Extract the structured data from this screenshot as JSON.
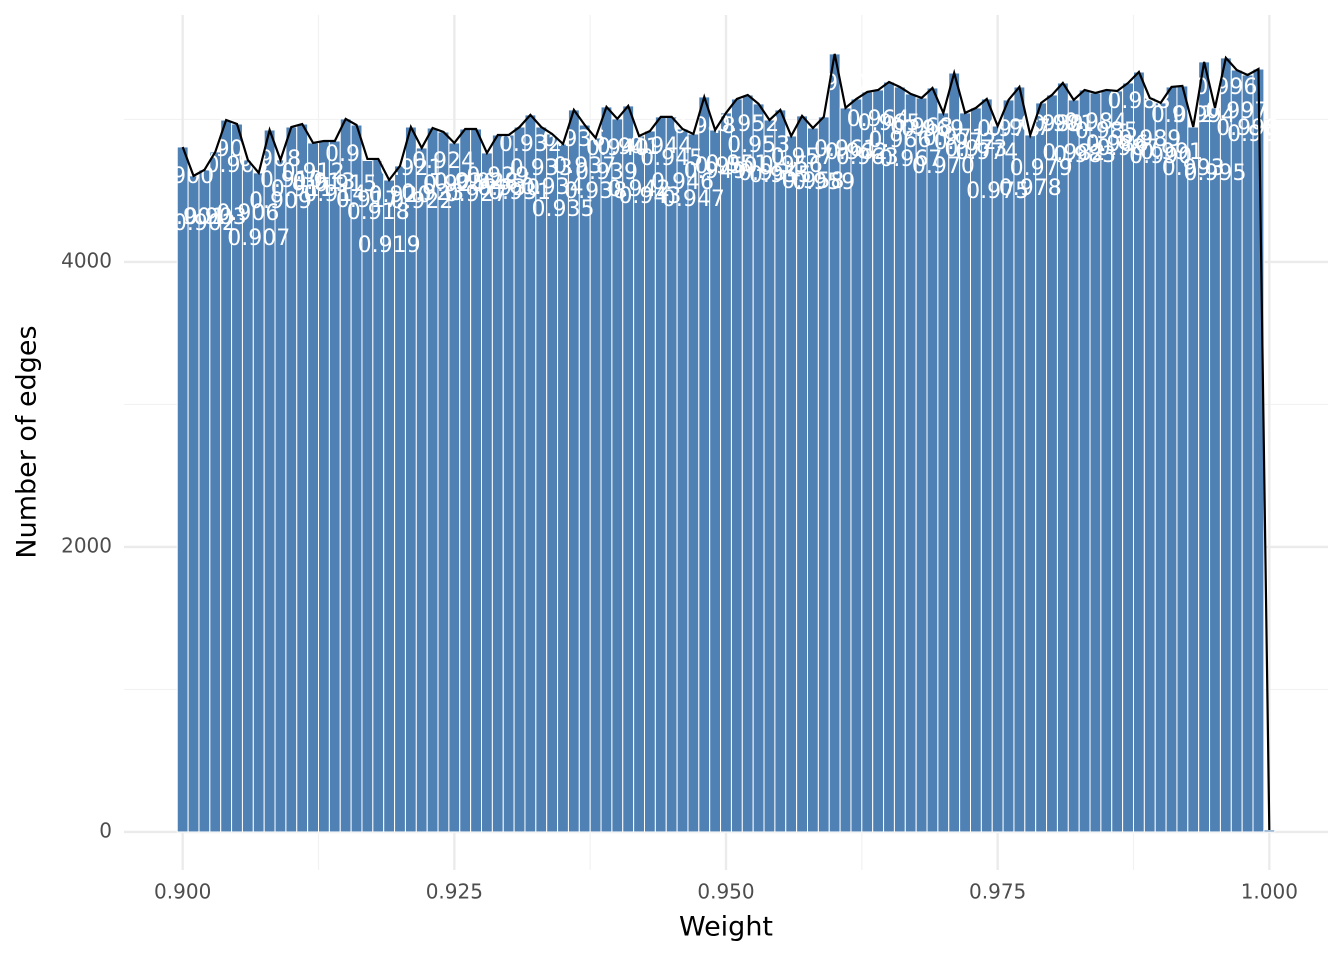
{
  "chart_data": {
    "type": "histogram",
    "x_label": "Weight",
    "y_label": "Number of edges",
    "bins": [
      0.8995,
      0.9005,
      0.9015,
      0.9025,
      0.9035,
      0.9045,
      0.9055,
      0.9065,
      0.9075,
      0.9085,
      0.9095,
      0.9105,
      0.9115,
      0.9125,
      0.9135,
      0.9145,
      0.9155,
      0.9165,
      0.9175,
      0.9185,
      0.9195,
      0.9205,
      0.9215,
      0.9225,
      0.9235,
      0.9245,
      0.9255,
      0.9265,
      0.9275,
      0.9285,
      0.9295,
      0.9305,
      0.9315,
      0.9325,
      0.9335,
      0.9345,
      0.9355,
      0.9365,
      0.9375,
      0.9385,
      0.9395,
      0.9405,
      0.9415,
      0.9425,
      0.9435,
      0.9445,
      0.9455,
      0.9465,
      0.9475,
      0.9485,
      0.9495,
      0.9505,
      0.9515,
      0.9525,
      0.9535,
      0.9545,
      0.9555,
      0.9565,
      0.9575,
      0.9585,
      0.9595,
      0.9605,
      0.9615,
      0.9625,
      0.9635,
      0.9645,
      0.9655,
      0.9665,
      0.9675,
      0.9685,
      0.9695,
      0.9705,
      0.9715,
      0.9725,
      0.9735,
      0.9745,
      0.9755,
      0.9765,
      0.9775,
      0.9785,
      0.9795,
      0.9805,
      0.9815,
      0.9825,
      0.9835,
      0.9845,
      0.9855,
      0.9865,
      0.9875,
      0.9885,
      0.9895,
      0.9905,
      0.9915,
      0.9925,
      0.9935,
      0.9945,
      0.9955,
      0.9965,
      0.9975,
      0.9985,
      0.9995,
      1.0005
    ],
    "values": [
      4807,
      4604,
      4646,
      4772,
      4996,
      4968,
      4716,
      4625,
      4926,
      4716,
      4947,
      4968,
      4835,
      4849,
      4849,
      5004,
      4961,
      4723,
      4723,
      4575,
      4674,
      4947,
      4800,
      4940,
      4912,
      4835,
      4933,
      4933,
      4765,
      4891,
      4891,
      4947,
      5032,
      4947,
      4898,
      4828,
      5067,
      4961,
      4870,
      5088,
      5004,
      5095,
      4884,
      4919,
      5018,
      5018,
      4933,
      4898,
      5158,
      4926,
      5046,
      5144,
      5172,
      5109,
      4996,
      5067,
      4884,
      5025,
      4940,
      5018,
      5460,
      5081,
      5144,
      5193,
      5207,
      5263,
      5228,
      5179,
      5151,
      5221,
      5046,
      5326,
      5046,
      5081,
      5144,
      4954,
      5137,
      5228,
      4891,
      5116,
      5172,
      5256,
      5137,
      5207,
      5186,
      5207,
      5200,
      5256,
      5333,
      5151,
      5116,
      5228,
      5235,
      4947,
      5404,
      5081,
      5432,
      5347,
      5312,
      5354,
      14
    ],
    "labels": [
      "0.900",
      "0.901",
      "0.902",
      "0.903",
      "0.904",
      "0.905",
      "0.906",
      "0.907",
      "0.908",
      "0.909",
      "0.910",
      "0.911",
      "0.912",
      "0.913",
      "0.914",
      "0.915",
      "0.916",
      "0.917",
      "0.918",
      "0.919",
      "0.920",
      "0.921",
      "0.922",
      "0.923",
      "0.924",
      "0.925",
      "0.926",
      "0.927",
      "0.928",
      "0.929",
      "0.930",
      "0.931",
      "0.932",
      "0.933",
      "0.934",
      "0.935",
      "0.936",
      "0.937",
      "0.938",
      "0.939",
      "0.940",
      "0.941",
      "0.942",
      "0.943",
      "0.944",
      "0.945",
      "0.946",
      "0.947",
      "0.948",
      "0.949",
      "0.950",
      "0.951",
      "0.952",
      "0.953",
      "0.954",
      "0.955",
      "0.956",
      "0.957",
      "0.958",
      "0.959",
      "0.960",
      "0.961",
      "0.962",
      "0.963",
      "0.964",
      "0.965",
      "0.966",
      "0.967",
      "0.968",
      "0.969",
      "0.970",
      "0.971",
      "0.972",
      "0.973",
      "0.974",
      "0.975",
      "0.976",
      "0.977",
      "0.978",
      "0.979",
      "0.980",
      "0.981",
      "0.982",
      "0.983",
      "0.984",
      "0.985",
      "0.986",
      "0.987",
      "0.988",
      "0.989",
      "0.990",
      "0.991",
      "0.992",
      "0.993",
      "0.994",
      "0.995",
      "0.996",
      "0.997",
      "0.998",
      "0.999",
      null
    ],
    "color": "#4f81b4",
    "line_color": "#000000",
    "label_color": "#ffffff",
    "xlim": [
      0.8946,
      1.0054
    ],
    "ylim": [
      -267,
      5733
    ],
    "xticks": [
      {
        "value": 0.9,
        "label": "0.900"
      },
      {
        "value": 0.925,
        "label": "0.925"
      },
      {
        "value": 0.95,
        "label": "0.950"
      },
      {
        "value": 0.975,
        "label": "0.975"
      },
      {
        "value": 1.0,
        "label": "1.000"
      }
    ],
    "yticks": [
      0,
      2000,
      4000
    ],
    "minor_xticks": [
      0.9125,
      0.9375,
      0.9625,
      0.9875
    ],
    "minor_yticks": [
      1000,
      3000,
      5000
    ],
    "grid": true
  }
}
